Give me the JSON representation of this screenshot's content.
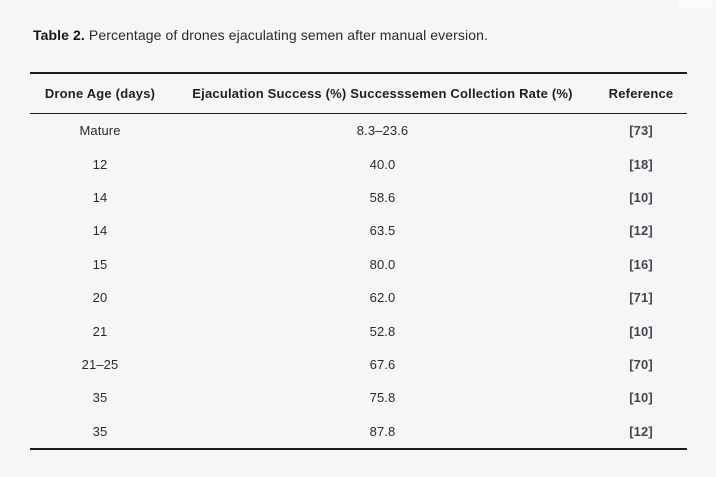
{
  "caption": {
    "label": "Table 2.",
    "text": " Percentage of drones ejaculating semen after manual eversion."
  },
  "table": {
    "headers": [
      "Drone Age (days)",
      "Ejaculation Success (%) Successsemen Collection Rate (%)",
      "Reference"
    ],
    "ref_open": "[",
    "ref_close": "]",
    "rows": [
      {
        "age": "Mature",
        "value": "8.3–23.6",
        "ref": "73"
      },
      {
        "age": "12",
        "value": "40.0",
        "ref": "18"
      },
      {
        "age": "14",
        "value": "58.6",
        "ref": "10"
      },
      {
        "age": "14",
        "value": "63.5",
        "ref": "12"
      },
      {
        "age": "15",
        "value": "80.0",
        "ref": "16"
      },
      {
        "age": "20",
        "value": "62.0",
        "ref": "71"
      },
      {
        "age": "21",
        "value": "52.8",
        "ref": "10"
      },
      {
        "age": "21–25",
        "value": "67.6",
        "ref": "70"
      },
      {
        "age": "35",
        "value": "75.8",
        "ref": "10"
      },
      {
        "age": "35",
        "value": "87.8",
        "ref": "12"
      }
    ]
  },
  "colors": {
    "background": "#f6f6f6",
    "rule": "#1b1b1b",
    "body_text": "#2b2b2b",
    "reference_number": "#3b4757"
  }
}
